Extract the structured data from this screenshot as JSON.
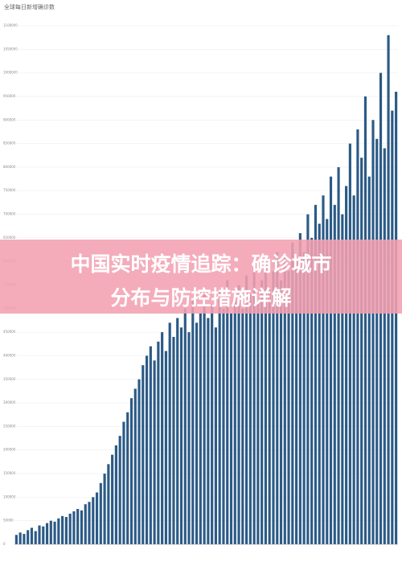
{
  "chart_data": {
    "type": "bar",
    "title": "全球每日新增确诊数",
    "color": "#2b5a86",
    "values": [
      20000,
      25000,
      22000,
      30000,
      35000,
      28000,
      40000,
      38000,
      45000,
      50000,
      48000,
      55000,
      60000,
      58000,
      65000,
      70000,
      75000,
      72000,
      85000,
      90000,
      100000,
      110000,
      130000,
      150000,
      170000,
      190000,
      210000,
      230000,
      260000,
      280000,
      310000,
      330000,
      350000,
      380000,
      400000,
      420000,
      390000,
      430000,
      450000,
      410000,
      470000,
      440000,
      480000,
      460000,
      500000,
      450000,
      520000,
      470000,
      490000,
      530000,
      480000,
      510000,
      460000,
      540000,
      500000,
      560000,
      490000,
      520000,
      550000,
      500000,
      570000,
      530000,
      590000,
      510000,
      560000,
      600000,
      540000,
      580000,
      620000,
      560000,
      610000,
      580000,
      640000,
      600000,
      660000,
      620000,
      700000,
      650000,
      720000,
      680000,
      740000,
      690000,
      780000,
      720000,
      800000,
      700000,
      760000,
      850000,
      740000,
      880000,
      820000,
      950000,
      780000,
      900000,
      860000,
      1000000,
      840000,
      1080000,
      920000,
      960000
    ],
    "ylim": [
      0,
      1100000
    ],
    "yticks": [
      0,
      50000,
      100000,
      150000,
      200000,
      250000,
      300000,
      350000,
      400000,
      450000,
      500000,
      550000,
      600000,
      650000,
      700000,
      750000,
      800000,
      850000,
      900000,
      950000,
      1000000,
      1050000,
      1100000
    ],
    "grid": true
  },
  "banner": [
    "中国实时疫情追踪：确诊城市分布与防控措施详解"
  ]
}
